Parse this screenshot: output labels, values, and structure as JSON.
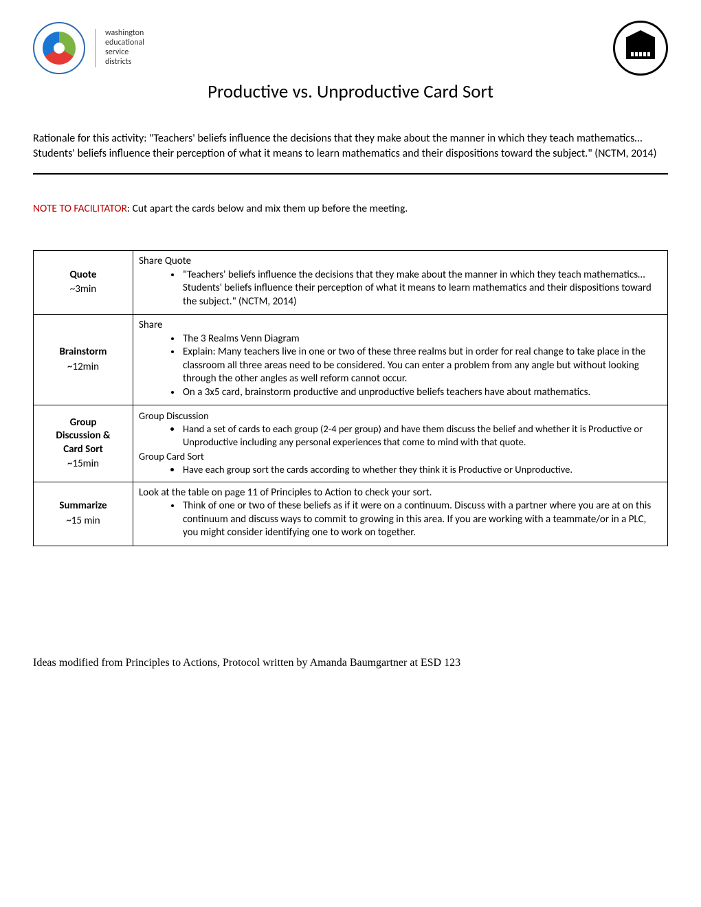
{
  "header": {
    "wesd_line1": "washington",
    "wesd_line2": "educational",
    "wesd_line3": "service",
    "wesd_line4": "districts"
  },
  "title": "Productive vs. Unproductive Card Sort",
  "rationale": "Rationale for this activity: \"Teachers' beliefs influence the decisions that they make about the manner in which they teach mathematics… Students' beliefs influence their perception of what it means to learn mathematics and their dispositions toward the subject.\" (NCTM, 2014)",
  "note": {
    "lead": "NOTE TO FACILITATOR",
    "rest": ": Cut apart the cards below and mix them up before the meeting."
  },
  "rows": [
    {
      "label": "Quote",
      "time": "~3min",
      "sections": [
        {
          "head": "Share Quote",
          "items": [
            "\"Teachers' beliefs influence the decisions that they make about the manner in which they teach mathematics… Students' beliefs influence their perception of what it means to learn mathematics and their dispositions toward the subject.\" (NCTM, 2014)"
          ]
        }
      ]
    },
    {
      "label": "Brainstorm",
      "time": "~12min",
      "sections": [
        {
          "head": "Share",
          "items": [
            "The 3 Realms Venn Diagram",
            "Explain: Many teachers live in one or two of these three realms but in order for real change to take place in the classroom all three areas need to be considered. You can enter a problem from any angle but without looking through the other angles as well reform cannot occur.",
            "On a 3x5 card, brainstorm productive and unproductive beliefs teachers have about mathematics."
          ]
        }
      ]
    },
    {
      "label": "Group Discussion & Card Sort",
      "time": "~15min",
      "sections": [
        {
          "head": "Group Discussion",
          "items": [
            "Hand a set of cards to each group (2-4 per group) and have them discuss the belief and whether it is Productive or Unproductive including any personal experiences that come to mind with that quote."
          ]
        },
        {
          "head": "Group Card Sort",
          "items": [
            "Have each group sort the cards according to whether they think it is Productive or Unproductive."
          ]
        }
      ]
    },
    {
      "label": "Summarize",
      "time": "~15 min",
      "sections": [
        {
          "head": "Look at the table on page 11 of Principles to Action to check your sort.",
          "items": [
            "Think of one or two of these beliefs as if it were on a continuum.  Discuss with a partner where you are at on this continuum and discuss ways to commit to growing in this area.  If you are working with a teammate/or in a PLC, you might consider identifying one to work on together."
          ]
        }
      ]
    }
  ],
  "footer": "Ideas modified from Principles to Actions, Protocol written by Amanda Baumgartner at ESD 123"
}
